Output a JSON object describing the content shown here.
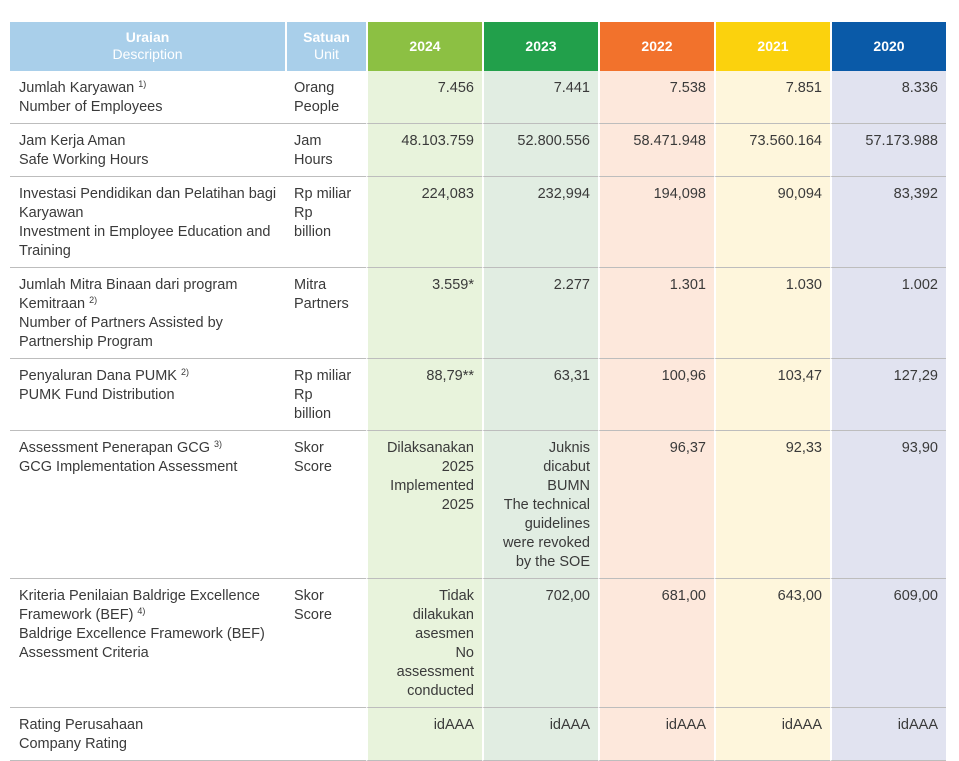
{
  "header": {
    "uraian_id": "Uraian",
    "uraian_en": "Description",
    "satuan_id": "Satuan",
    "satuan_en": "Unit",
    "years": [
      "2024",
      "2023",
      "2022",
      "2021",
      "2020"
    ]
  },
  "rows": [
    {
      "desc_id": "Jumlah Karyawan",
      "sup": "1)",
      "desc_en": "Number of Employees",
      "unit_id": "Orang",
      "unit_en": "People",
      "unit_en2": "",
      "v2024": "7.456",
      "v2023": "7.441",
      "v2022": "7.538",
      "v2021": "7.851",
      "v2020": "8.336"
    },
    {
      "desc_id": "Jam Kerja Aman",
      "sup": "",
      "desc_en": "Safe Working Hours",
      "unit_id": "Jam",
      "unit_en": "Hours",
      "unit_en2": "",
      "v2024": "48.103.759",
      "v2023": "52.800.556",
      "v2022": "58.471.948",
      "v2021": "73.560.164",
      "v2020": "57.173.988"
    },
    {
      "desc_id": "Investasi Pendidikan dan Pelatihan bagi Karyawan",
      "sup": "",
      "desc_en": "Investment in Employee Education and Training",
      "unit_id": "Rp miliar",
      "unit_en": "Rp",
      "unit_en2": "billion",
      "v2024": "224,083",
      "v2023": "232,994",
      "v2022": "194,098",
      "v2021": "90,094",
      "v2020": "83,392"
    },
    {
      "desc_id": "Jumlah Mitra Binaan dari program Kemitraan",
      "sup": "2)",
      "desc_en": "Number of Partners Assisted by Partnership Program",
      "unit_id": "Mitra",
      "unit_en": "Partners",
      "unit_en2": "",
      "v2024": "3.559*",
      "v2023": "2.277",
      "v2022": "1.301",
      "v2021": "1.030",
      "v2020": "1.002"
    },
    {
      "desc_id": "Penyaluran Dana PUMK",
      "sup": "2)",
      "desc_en": "PUMK Fund Distribution",
      "unit_id": "Rp miliar",
      "unit_en": "Rp",
      "unit_en2": "billion",
      "v2024": "88,79**",
      "v2023": "63,31",
      "v2022": "100,96",
      "v2021": "103,47",
      "v2020": "127,29"
    },
    {
      "desc_id": "Assessment Penerapan GCG",
      "sup": "3)",
      "desc_en": "GCG Implementation Assessment",
      "unit_id": "Skor",
      "unit_en": "Score",
      "unit_en2": "",
      "v2024_lines": [
        "Dilaksanakan",
        "2025",
        "Implemented",
        "2025"
      ],
      "v2023_lines": [
        "Juknis",
        "dicabut",
        "BUMN",
        "The technical",
        "guidelines",
        "were revoked",
        "by the SOE"
      ],
      "v2022": "96,37",
      "v2021": "92,33",
      "v2020": "93,90"
    },
    {
      "desc_id": "Kriteria Penilaian Baldrige Excellence Framework (BEF)",
      "sup": "4)",
      "desc_en": "Baldrige Excellence Framework (BEF) Assessment Criteria",
      "unit_id": "Skor",
      "unit_en": "Score",
      "unit_en2": "",
      "v2024_lines": [
        "Tidak",
        "dilakukan",
        "asesmen",
        "No",
        "assessment",
        "conducted"
      ],
      "v2023": "702,00",
      "v2022": "681,00",
      "v2021": "643,00",
      "v2020": "609,00"
    },
    {
      "desc_id": "Rating Perusahaan",
      "sup": "",
      "desc_en": "Company Rating",
      "unit_id": "",
      "unit_en": "",
      "unit_en2": "",
      "v2024": "idAAA",
      "v2023": "idAAA",
      "v2022": "idAAA",
      "v2021": "idAAA",
      "v2020": "idAAA"
    }
  ]
}
